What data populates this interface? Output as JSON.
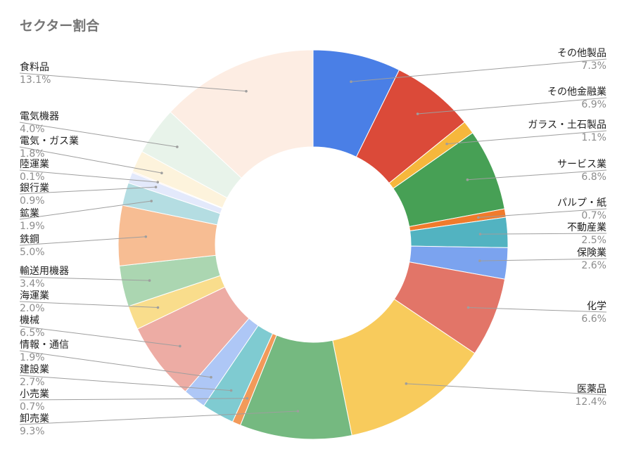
{
  "chart_data": {
    "type": "pie",
    "title": "セクター割合",
    "donut": true,
    "start_angle_deg": 0,
    "direction": "clockwise",
    "slices": [
      {
        "label": "その他製品",
        "value": 7.3,
        "pct": "7.3%",
        "color": "#4a7fe6"
      },
      {
        "label": "その他金融業",
        "value": 6.9,
        "pct": "6.9%",
        "color": "#db4a39"
      },
      {
        "label": "ガラス・土石製品",
        "value": 1.1,
        "pct": "1.1%",
        "color": "#f6b73c"
      },
      {
        "label": "サービス業",
        "value": 6.8,
        "pct": "6.8%",
        "color": "#47a055"
      },
      {
        "label": "パルプ・紙",
        "value": 0.7,
        "pct": "0.7%",
        "color": "#f07b2c"
      },
      {
        "label": "不動産業",
        "value": 2.5,
        "pct": "2.5%",
        "color": "#52b3c1"
      },
      {
        "label": "保険業",
        "value": 2.6,
        "pct": "2.6%",
        "color": "#7ba3ef"
      },
      {
        "label": "化学",
        "value": 6.6,
        "pct": "6.6%",
        "color": "#e27568"
      },
      {
        "label": "医薬品",
        "value": 12.4,
        "pct": "12.4%",
        "color": "#f8cb5c"
      },
      {
        "label": "卸売業",
        "value": 9.3,
        "pct": "9.3%",
        "color": "#75b980"
      },
      {
        "label": "小売業",
        "value": 0.7,
        "pct": "0.7%",
        "color": "#f29a5a"
      },
      {
        "label": "建設業",
        "value": 2.7,
        "pct": "2.7%",
        "color": "#7fcbd1"
      },
      {
        "label": "情報・通信",
        "value": 1.9,
        "pct": "1.9%",
        "color": "#aec7f6"
      },
      {
        "label": "機械",
        "value": 6.5,
        "pct": "6.5%",
        "color": "#edaca4"
      },
      {
        "label": "海運業",
        "value": 2.0,
        "pct": "2.0%",
        "color": "#f9dd8c"
      },
      {
        "label": "輸送用機器",
        "value": 3.4,
        "pct": "3.4%",
        "color": "#abd6b1"
      },
      {
        "label": "鉄鋼",
        "value": 5.0,
        "pct": "5.0%",
        "color": "#f7bd93"
      },
      {
        "label": "鉱業",
        "value": 1.9,
        "pct": "1.9%",
        "color": "#b4dde2"
      },
      {
        "label": "銀行業",
        "value": 0.9,
        "pct": "0.9%",
        "color": "#e3e9fb"
      },
      {
        "label": "陸運業",
        "value": 0.1,
        "pct": "0.1%",
        "color": "#fbe9e7"
      },
      {
        "label": "電気・ガス業",
        "value": 1.8,
        "pct": "1.8%",
        "color": "#fdf3dc"
      },
      {
        "label": "電気機器",
        "value": 4.0,
        "pct": "4.0%",
        "color": "#e8f3ea"
      },
      {
        "label": "食料品",
        "value": 13.1,
        "pct": "13.1%",
        "color": "#fdede3"
      }
    ]
  }
}
